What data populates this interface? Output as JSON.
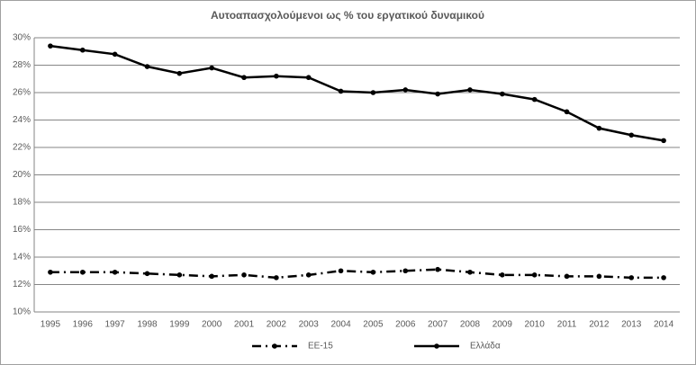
{
  "chart_data": {
    "type": "line",
    "title": "Αυτοαπασχολούμενοι ως % του εργατικού δυναμικού",
    "categories": [
      "1995",
      "1996",
      "1997",
      "1998",
      "1999",
      "2000",
      "2001",
      "2002",
      "2003",
      "2004",
      "2005",
      "2006",
      "2007",
      "2008",
      "2009",
      "2010",
      "2011",
      "2012",
      "2013",
      "2014"
    ],
    "series": [
      {
        "name": "EE-15",
        "color": "#000000",
        "dash": "dash-dot",
        "values": [
          12.9,
          12.9,
          12.9,
          12.8,
          12.7,
          12.6,
          12.7,
          12.5,
          12.7,
          13.0,
          12.9,
          13.0,
          13.1,
          12.9,
          12.7,
          12.7,
          12.6,
          12.6,
          12.5,
          12.5
        ]
      },
      {
        "name": "Ελλάδα",
        "color": "#000000",
        "dash": "solid",
        "values": [
          29.4,
          29.1,
          28.8,
          27.9,
          27.4,
          27.8,
          27.1,
          27.2,
          27.1,
          26.1,
          26.0,
          26.2,
          25.9,
          26.2,
          25.9,
          25.5,
          24.6,
          23.4,
          22.9,
          22.5
        ]
      }
    ],
    "ylim": [
      10,
      30
    ],
    "yticks": [
      {
        "value": 10,
        "label": "10%"
      },
      {
        "value": 12,
        "label": "12%"
      },
      {
        "value": 14,
        "label": "14%"
      },
      {
        "value": 16,
        "label": "16%"
      },
      {
        "value": 18,
        "label": "18%"
      },
      {
        "value": 20,
        "label": "20%"
      },
      {
        "value": 22,
        "label": "22%"
      },
      {
        "value": 24,
        "label": "24%"
      },
      {
        "value": 26,
        "label": "26%"
      },
      {
        "value": 28,
        "label": "28%"
      },
      {
        "value": 30,
        "label": "30%"
      }
    ],
    "grid": true,
    "legend": "bottom"
  }
}
